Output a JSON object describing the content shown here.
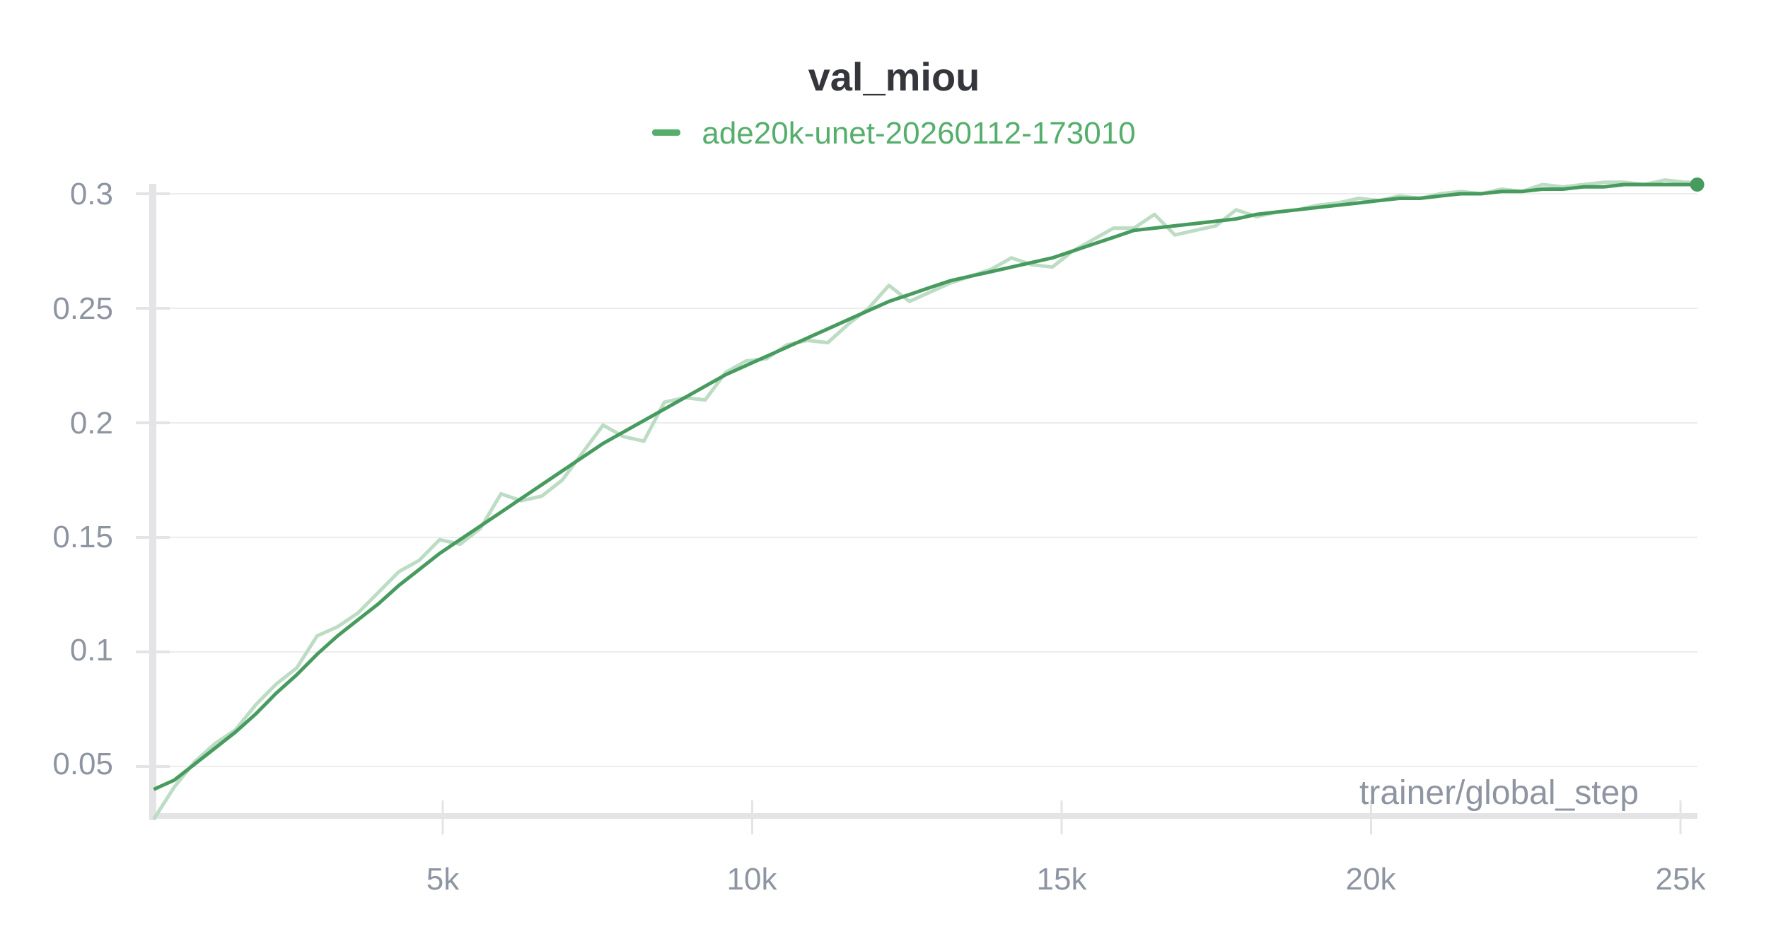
{
  "chart": {
    "title": "val_miou",
    "legend_label": "ade20k-unet-20260112-173010",
    "xlabel": "trainer/global_step",
    "yticks": [
      "0.3",
      "0.25",
      "0.2",
      "0.15",
      "0.1",
      "0.05"
    ],
    "xticks": [
      "5k",
      "10k",
      "15k",
      "20k",
      "25k"
    ],
    "colors": {
      "line": "#479b5f",
      "raw": "#bcdcc3",
      "legend": "#55ae6b",
      "axis": "#e4e4e6",
      "grid": "#ececec",
      "tick_text": "#8e95a2",
      "title": "#34363c"
    }
  },
  "chart_data": {
    "type": "line",
    "title": "val_miou",
    "xlabel": "trainer/global_step",
    "ylabel": "",
    "xlim": [
      316,
      25300
    ],
    "ylim": [
      0.0265,
      0.31
    ],
    "grid": true,
    "legend_position": "top-center",
    "yticks": [
      0.05,
      0.1,
      0.15,
      0.2,
      0.25,
      0.3
    ],
    "xticks": [
      5000,
      10000,
      15000,
      20000,
      25000
    ],
    "series": [
      {
        "name": "ade20k-unet-20260112-173010 (raw)",
        "x": [
          330,
          660,
          990,
          1320,
          1650,
          1980,
          2310,
          2640,
          2970,
          3300,
          3630,
          3960,
          4290,
          4620,
          4950,
          5280,
          5610,
          5940,
          6270,
          6600,
          6930,
          7260,
          7590,
          7920,
          8250,
          8580,
          8910,
          9240,
          9570,
          9900,
          10230,
          10560,
          10890,
          11220,
          11550,
          11880,
          12210,
          12540,
          12870,
          13200,
          13530,
          13860,
          14190,
          14520,
          14850,
          15180,
          15510,
          15840,
          16170,
          16500,
          16830,
          17160,
          17490,
          17820,
          18150,
          18480,
          18810,
          19140,
          19470,
          19800,
          20130,
          20460,
          20790,
          21120,
          21450,
          21780,
          22110,
          22440,
          22770,
          23100,
          23430,
          23760,
          24090,
          24420,
          24750,
          25080,
          25270
        ],
        "values": [
          0.027,
          0.041,
          0.052,
          0.06,
          0.066,
          0.077,
          0.086,
          0.093,
          0.107,
          0.111,
          0.117,
          0.126,
          0.135,
          0.14,
          0.149,
          0.147,
          0.154,
          0.169,
          0.166,
          0.168,
          0.175,
          0.187,
          0.199,
          0.194,
          0.192,
          0.209,
          0.211,
          0.21,
          0.222,
          0.227,
          0.228,
          0.234,
          0.236,
          0.235,
          0.243,
          0.25,
          0.26,
          0.253,
          0.257,
          0.261,
          0.264,
          0.267,
          0.272,
          0.269,
          0.268,
          0.275,
          0.28,
          0.285,
          0.285,
          0.291,
          0.282,
          0.284,
          0.286,
          0.293,
          0.29,
          0.292,
          0.293,
          0.295,
          0.296,
          0.298,
          0.297,
          0.299,
          0.298,
          0.3,
          0.301,
          0.3,
          0.302,
          0.301,
          0.304,
          0.303,
          0.304,
          0.305,
          0.305,
          0.304,
          0.306,
          0.305,
          0.305
        ]
      },
      {
        "name": "ade20k-unet-20260112-173010",
        "x": [
          330,
          660,
          990,
          1320,
          1650,
          1980,
          2310,
          2640,
          2970,
          3300,
          3630,
          3960,
          4290,
          4620,
          4950,
          5280,
          5610,
          5940,
          6270,
          6600,
          6930,
          7260,
          7590,
          7920,
          8250,
          8580,
          8910,
          9240,
          9570,
          9900,
          10230,
          10560,
          10890,
          11220,
          11550,
          11880,
          12210,
          12540,
          12870,
          13200,
          13530,
          13860,
          14190,
          14520,
          14850,
          15180,
          15510,
          15840,
          16170,
          16500,
          16830,
          17160,
          17490,
          17820,
          18150,
          18480,
          18810,
          19140,
          19470,
          19800,
          20130,
          20460,
          20790,
          21120,
          21450,
          21780,
          22110,
          22440,
          22770,
          23100,
          23430,
          23760,
          24090,
          24420,
          24750,
          25080,
          25270
        ],
        "values": [
          0.04,
          0.044,
          0.051,
          0.058,
          0.065,
          0.073,
          0.082,
          0.09,
          0.099,
          0.107,
          0.114,
          0.121,
          0.129,
          0.136,
          0.143,
          0.149,
          0.155,
          0.161,
          0.167,
          0.173,
          0.179,
          0.185,
          0.191,
          0.196,
          0.201,
          0.206,
          0.211,
          0.216,
          0.221,
          0.225,
          0.229,
          0.233,
          0.237,
          0.241,
          0.245,
          0.249,
          0.253,
          0.256,
          0.259,
          0.262,
          0.264,
          0.266,
          0.268,
          0.27,
          0.272,
          0.275,
          0.278,
          0.281,
          0.284,
          0.285,
          0.286,
          0.287,
          0.288,
          0.289,
          0.291,
          0.292,
          0.293,
          0.294,
          0.295,
          0.296,
          0.297,
          0.298,
          0.298,
          0.299,
          0.3,
          0.3,
          0.301,
          0.301,
          0.302,
          0.302,
          0.303,
          0.303,
          0.304,
          0.304,
          0.304,
          0.304,
          0.304
        ]
      }
    ]
  }
}
